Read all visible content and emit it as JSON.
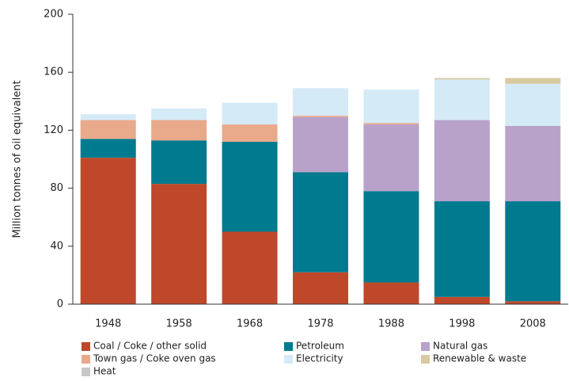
{
  "chart_data": {
    "type": "stacked_bar",
    "y_label": "Million tonnes of oil equivalent",
    "categories": [
      "1948",
      "1958",
      "1968",
      "1978",
      "1988",
      "1998",
      "2008"
    ],
    "series": [
      {
        "name": "Coal / Coke / other solid",
        "color": "#c0482a",
        "values": [
          101,
          83,
          50,
          22,
          15,
          5,
          2
        ]
      },
      {
        "name": "Petroleum",
        "color": "#007a8f",
        "values": [
          13,
          30,
          62,
          69,
          63,
          66,
          69
        ]
      },
      {
        "name": "Natural gas",
        "color": "#b8a2ca",
        "values": [
          0,
          0,
          0,
          38,
          46,
          56,
          52
        ]
      },
      {
        "name": "Town gas / Coke oven gas",
        "color": "#e9a98b",
        "values": [
          13,
          14,
          12,
          1,
          1,
          0,
          0
        ]
      },
      {
        "name": "Electricity",
        "color": "#d5eaf7",
        "values": [
          4,
          8,
          15,
          19,
          23,
          28,
          29
        ]
      },
      {
        "name": "Renewable & waste",
        "color": "#d8c9a1",
        "values": [
          0,
          0,
          0,
          0,
          0,
          1,
          4
        ]
      },
      {
        "name": "Heat",
        "color": "#c8c8c8",
        "values": [
          0,
          0,
          0,
          0,
          0,
          0,
          0
        ]
      }
    ],
    "ylim": [
      0,
      200
    ],
    "yticks": [
      0,
      40,
      80,
      120,
      160,
      200
    ],
    "grid": false
  }
}
